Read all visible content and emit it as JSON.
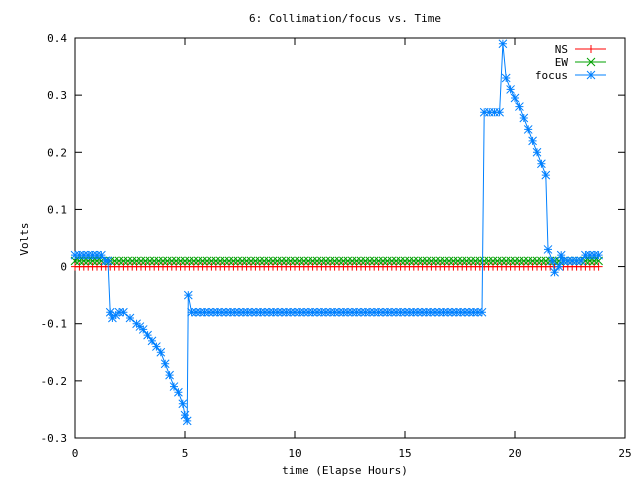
{
  "chart_data": {
    "type": "line",
    "title": "6: Collimation/focus vs. Time",
    "xlabel": "time (Elapse Hours)",
    "ylabel": "Volts",
    "xlim": [
      0,
      25
    ],
    "ylim": [
      -0.3,
      0.4
    ],
    "x_ticks": [
      0,
      5,
      10,
      15,
      20,
      25
    ],
    "y_ticks": [
      -0.3,
      -0.2,
      -0.1,
      0,
      0.1,
      0.2,
      0.3,
      0.4
    ],
    "x_tick_labels": [
      "0",
      "5",
      "10",
      "15",
      "20",
      "25"
    ],
    "y_tick_labels": [
      "-0.3",
      "-0.2",
      "-0.1",
      "0",
      "0.1",
      "0.2",
      "0.3",
      "0.4"
    ],
    "grid": false,
    "legend_position": "top-right",
    "series": [
      {
        "name": "NS",
        "color": "#ff0000",
        "marker": "plus",
        "points": [
          [
            0.0,
            0.0
          ],
          [
            23.8,
            0.0
          ]
        ]
      },
      {
        "name": "EW",
        "color": "#00a000",
        "marker": "cross",
        "points": [
          [
            0.0,
            0.01
          ],
          [
            23.8,
            0.01
          ]
        ]
      },
      {
        "name": "focus",
        "color": "#0080ff",
        "marker": "star",
        "points": [
          [
            0.0,
            0.02
          ],
          [
            1.0,
            0.02
          ],
          [
            1.2,
            0.02
          ],
          [
            1.4,
            0.01
          ],
          [
            1.5,
            0.01
          ],
          [
            1.6,
            -0.08
          ],
          [
            1.7,
            -0.09
          ],
          [
            2.0,
            -0.08
          ],
          [
            2.2,
            -0.08
          ],
          [
            2.5,
            -0.09
          ],
          [
            2.8,
            -0.1
          ],
          [
            3.1,
            -0.11
          ],
          [
            3.3,
            -0.12
          ],
          [
            3.5,
            -0.13
          ],
          [
            3.7,
            -0.14
          ],
          [
            3.9,
            -0.15
          ],
          [
            4.1,
            -0.17
          ],
          [
            4.3,
            -0.19
          ],
          [
            4.5,
            -0.21
          ],
          [
            4.7,
            -0.22
          ],
          [
            4.9,
            -0.24
          ],
          [
            5.0,
            -0.26
          ],
          [
            5.1,
            -0.27
          ],
          [
            5.15,
            -0.05
          ],
          [
            5.3,
            -0.08
          ],
          [
            10.0,
            -0.08
          ],
          [
            15.0,
            -0.08
          ],
          [
            18.5,
            -0.08
          ],
          [
            18.6,
            0.27
          ],
          [
            19.3,
            0.27
          ],
          [
            19.45,
            0.39
          ],
          [
            19.6,
            0.33
          ],
          [
            19.8,
            0.31
          ],
          [
            20.2,
            0.28
          ],
          [
            20.6,
            0.24
          ],
          [
            21.0,
            0.2
          ],
          [
            21.2,
            0.18
          ],
          [
            21.4,
            0.16
          ],
          [
            21.5,
            0.03
          ],
          [
            21.7,
            0.01
          ],
          [
            21.8,
            -0.01
          ],
          [
            22.0,
            0.0
          ],
          [
            22.1,
            0.02
          ],
          [
            22.2,
            0.01
          ],
          [
            22.6,
            0.01
          ],
          [
            22.8,
            0.01
          ],
          [
            23.0,
            0.01
          ],
          [
            23.2,
            0.02
          ],
          [
            23.8,
            0.02
          ]
        ]
      }
    ]
  }
}
